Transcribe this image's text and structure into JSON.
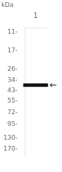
{
  "chart_data": {
    "type": "gel",
    "ylabel": "kDa",
    "categories": [
      "1"
    ],
    "values": [
      38
    ],
    "color": "#111111",
    "log": "y",
    "ylim": [
      200,
      10
    ],
    "yticks": [
      {
        "value": 170,
        "label": "170-"
      },
      {
        "value": 130,
        "label": "130-"
      },
      {
        "value": 95,
        "label": "95-"
      },
      {
        "value": 72,
        "label": "72-"
      },
      {
        "value": 55,
        "label": "55-"
      },
      {
        "value": 43,
        "label": "43-"
      },
      {
        "value": 34,
        "label": "34-"
      },
      {
        "value": 26,
        "label": "26-"
      },
      {
        "value": 17,
        "label": "17-"
      },
      {
        "value": 11,
        "label": "11-"
      }
    ],
    "grid": false
  }
}
